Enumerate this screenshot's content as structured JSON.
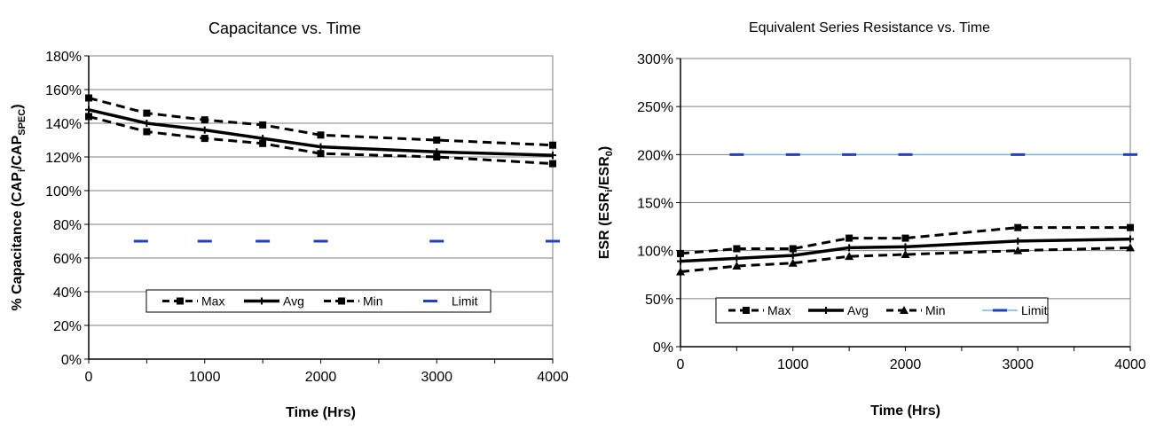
{
  "chart_data": [
    {
      "type": "line",
      "title": "Capacitance vs. Time",
      "xlabel": "Time (Hrs)",
      "ylabel_main": "% Capacitance (CAP",
      "ylabel_sub1": "i",
      "ylabel_mid": "/CAP",
      "ylabel_sub2": "SPEC",
      "ylabel_end": ")",
      "xlim": [
        0,
        4000
      ],
      "ylim": [
        0,
        180
      ],
      "x_ticks": [
        0,
        1000,
        2000,
        3000,
        4000
      ],
      "y_ticks": [
        "0%",
        "20%",
        "40%",
        "60%",
        "80%",
        "100%",
        "120%",
        "140%",
        "160%",
        "180%"
      ],
      "grid": true,
      "legend_position": "bottom-center",
      "series": [
        {
          "name": "Max",
          "style": "dashed",
          "marker": "square",
          "x": [
            0,
            500,
            1000,
            1500,
            2000,
            3000,
            4000
          ],
          "values": [
            155,
            146,
            142,
            139,
            133,
            130,
            127
          ]
        },
        {
          "name": "Avg",
          "style": "solid",
          "marker": "plus",
          "x": [
            0,
            500,
            1000,
            1500,
            2000,
            3000,
            4000
          ],
          "values": [
            148,
            140,
            136,
            131,
            126,
            123,
            121
          ]
        },
        {
          "name": "Min",
          "style": "dashed",
          "marker": "square",
          "x": [
            0,
            500,
            1000,
            1500,
            2000,
            3000,
            4000
          ],
          "values": [
            144,
            135,
            131,
            128,
            122,
            120,
            116
          ]
        },
        {
          "name": "Limit",
          "style": "marker-only",
          "marker": "dash",
          "color": "#1f3fbf",
          "x": [
            450,
            1000,
            1500,
            2000,
            3000,
            4000
          ],
          "values": [
            70,
            70,
            70,
            70,
            70,
            70
          ]
        }
      ]
    },
    {
      "type": "line",
      "title": "Equivalent Series Resistance vs. Time",
      "xlabel": "Time (Hrs)",
      "ylabel_main": "ESR (ESR",
      "ylabel_sub1": "i",
      "ylabel_mid": "/ESR",
      "ylabel_sub2": "0",
      "ylabel_end": ")",
      "xlim": [
        0,
        4000
      ],
      "ylim": [
        0,
        300
      ],
      "x_ticks": [
        0,
        1000,
        2000,
        3000,
        4000
      ],
      "y_ticks": [
        "0%",
        "50%",
        "100%",
        "150%",
        "200%",
        "250%",
        "300%"
      ],
      "grid": true,
      "legend_position": "bottom-center",
      "series": [
        {
          "name": "Max",
          "style": "dashed",
          "marker": "square",
          "x": [
            0,
            500,
            1000,
            1500,
            2000,
            3000,
            4000
          ],
          "values": [
            97,
            102,
            102,
            113,
            113,
            124,
            124
          ]
        },
        {
          "name": "Avg",
          "style": "solid",
          "marker": "plus",
          "x": [
            0,
            500,
            1000,
            1500,
            2000,
            3000,
            4000
          ],
          "values": [
            89,
            92,
            95,
            103,
            104,
            110,
            112
          ]
        },
        {
          "name": "Min",
          "style": "dashed",
          "marker": "triangle",
          "x": [
            0,
            500,
            1000,
            1500,
            2000,
            3000,
            4000
          ],
          "values": [
            78,
            84,
            87,
            94,
            96,
            100,
            103
          ]
        },
        {
          "name": "Limit",
          "style": "line",
          "marker": "dash",
          "color": "#1f3fbf",
          "line_color": "#7fb2e5",
          "x": [
            500,
            1000,
            1500,
            2000,
            3000,
            4000
          ],
          "values": [
            200,
            200,
            200,
            200,
            200,
            200
          ]
        }
      ]
    }
  ]
}
